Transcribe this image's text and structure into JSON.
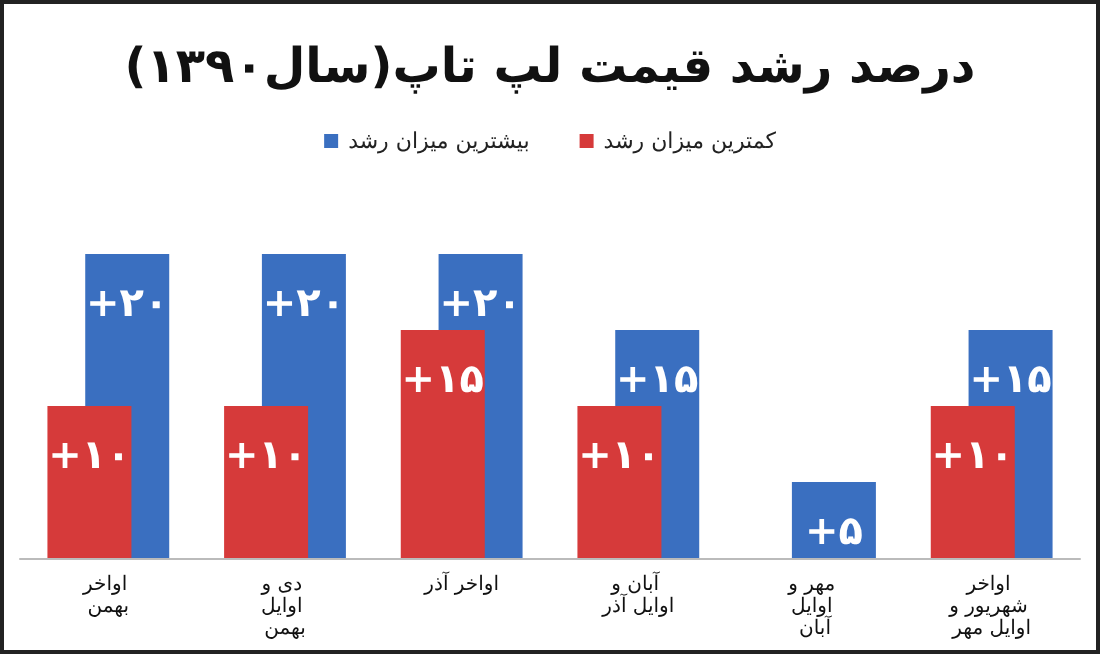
{
  "chart_data": {
    "type": "bar",
    "title": "درصد رشد قیمت لپ تاپ(سال۱۳۹۰)",
    "categories": [
      "اواخر بهمن",
      "دی و اوایل بهمن",
      "اواخر آذر",
      "آبان و اوایل آذر",
      "مهر و اوایل آبان",
      "اواخر شهریور و اوایل مهر"
    ],
    "series": [
      {
        "name": "کمترین میزان رشد",
        "color": "#d63a3a",
        "values": [
          10,
          10,
          15,
          10,
          null,
          10
        ],
        "value_labels": [
          "+۱۰",
          "+۱۰",
          "+۱۵",
          "+۱۰",
          null,
          "+۱۰"
        ]
      },
      {
        "name": "بیشترین میزان رشد",
        "color": "#3a6fc0",
        "values": [
          20,
          20,
          20,
          15,
          5,
          15
        ],
        "value_labels": [
          "+۲۰",
          "+۲۰",
          "+۲۰",
          "+۱۵",
          "+۵",
          "+۱۵"
        ]
      }
    ],
    "legend": "top",
    "grid": false
  }
}
